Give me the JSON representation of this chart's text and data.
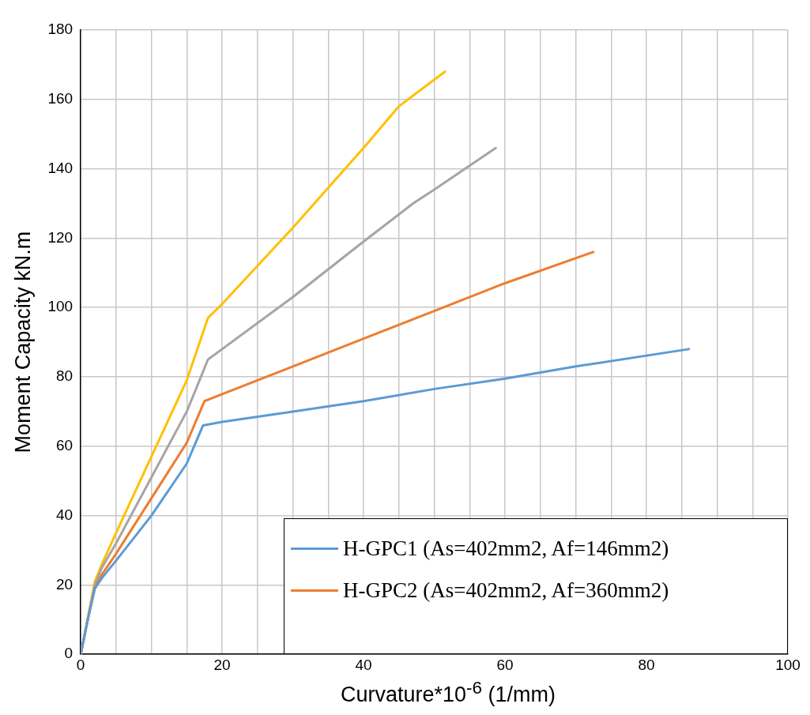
{
  "chart_data": {
    "type": "line",
    "xlabel": "Curvature*10$^{-6}$ (1/mm)",
    "ylabel": "Moment Capacity kN.m",
    "xlim": [
      0,
      100
    ],
    "xticks": [
      0,
      {
        "value": 5,
        "label": null
      },
      {
        "value": 10,
        "label": null
      },
      {
        "value": 15,
        "label": null
      },
      20,
      {
        "value": 25,
        "label": null
      },
      {
        "value": 30,
        "label": null
      },
      {
        "value": 35,
        "label": null
      },
      40,
      {
        "value": 45,
        "label": null
      },
      {
        "value": 50,
        "label": null
      },
      {
        "value": 55,
        "label": null
      },
      60,
      {
        "value": 65,
        "label": null
      },
      {
        "value": 70,
        "label": null
      },
      {
        "value": 75,
        "label": null
      },
      80,
      {
        "value": 85,
        "label": null
      },
      {
        "value": 90,
        "label": null
      },
      {
        "value": 95,
        "label": null
      },
      100
    ],
    "ylim": [
      0,
      180
    ],
    "yticks": [
      0,
      20,
      40,
      60,
      80,
      100,
      120,
      140,
      160,
      180
    ],
    "grid": true,
    "legend": "bottom right",
    "marker": "none",
    "line_style": "solid",
    "series": [
      {
        "name": "H-GPC1 (As=402mm2, Af=146mm2)",
        "color": "#5b9bd5",
        "x": [
          0,
          1,
          2,
          3,
          5,
          10,
          15,
          17.3,
          20,
          30,
          40,
          50,
          60,
          70,
          86
        ],
        "values": [
          0,
          10,
          19,
          22,
          27,
          40,
          55,
          66,
          67,
          70,
          73,
          76.5,
          79.5,
          83,
          88
        ]
      },
      {
        "name": "H-GPC2 (As=402mm2, Af=360mm2)",
        "color": "#ed7d31",
        "x": [
          0,
          1,
          2,
          3,
          5,
          10,
          15,
          17.5,
          20,
          30,
          40,
          50,
          60,
          72.5
        ],
        "values": [
          0,
          10,
          19,
          23,
          29,
          45,
          61,
          73,
          75,
          83,
          91,
          99,
          107,
          116
        ]
      },
      {
        "color": "#a5a5a5",
        "x": [
          0,
          1,
          2,
          3,
          5,
          10,
          15,
          18,
          20,
          30,
          40,
          47,
          50,
          58.7
        ],
        "values": [
          0,
          10,
          20,
          25,
          32,
          51,
          70,
          85,
          88,
          103,
          119,
          130,
          134,
          146
        ]
      },
      {
        "color": "#ffc000",
        "x": [
          0,
          2,
          3,
          5,
          10,
          15,
          18,
          20,
          30,
          40,
          45,
          51.5
        ],
        "values": [
          0,
          21,
          26,
          35,
          57,
          79,
          97,
          101,
          123,
          146,
          158,
          168
        ]
      }
    ]
  }
}
